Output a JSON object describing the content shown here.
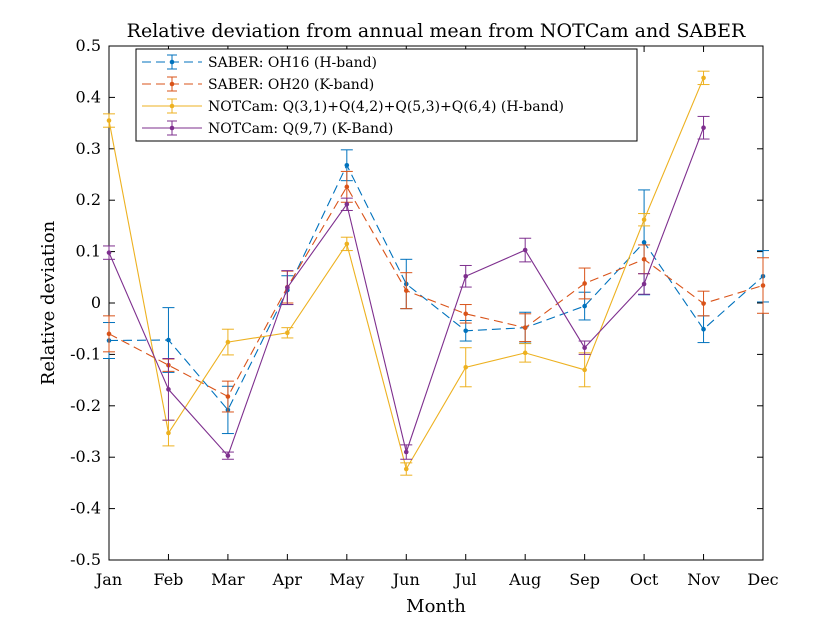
{
  "chart_data": {
    "type": "line",
    "title": "Relative deviation from annual mean from NOTCam and SABER",
    "xlabel": "Month",
    "ylabel": "Relative deviation",
    "categories": [
      "Jan",
      "Feb",
      "Mar",
      "Apr",
      "May",
      "Jun",
      "Jul",
      "Aug",
      "Sep",
      "Oct",
      "Nov",
      "Dec"
    ],
    "ylim": [
      -0.5,
      0.5
    ],
    "yticks": [
      -0.5,
      -0.4,
      -0.3,
      -0.2,
      -0.1,
      0,
      0.1,
      0.2,
      0.3,
      0.4,
      0.5
    ],
    "ytick_labels": [
      "-0.5",
      "-0.4",
      "-0.3",
      "-0.2",
      "-0.1",
      "0",
      "0.1",
      "0.2",
      "0.3",
      "0.4",
      "0.5"
    ],
    "grid": false,
    "legend_position": "top-left",
    "series": [
      {
        "name": "SABER: OH16 (H-band)",
        "color": "#0072BD",
        "dash": "dashed",
        "values": [
          -0.073,
          -0.072,
          -0.208,
          0.025,
          0.268,
          0.037,
          -0.054,
          -0.048,
          -0.006,
          0.118,
          -0.051,
          0.052
        ],
        "errors": [
          0.035,
          0.063,
          0.046,
          0.028,
          0.03,
          0.048,
          0.02,
          0.03,
          0.027,
          0.102,
          0.026,
          0.05
        ]
      },
      {
        "name": "SABER: OH20 (K-band)",
        "color": "#D95319",
        "dash": "dashed",
        "values": [
          -0.06,
          -0.121,
          -0.182,
          0.031,
          0.226,
          0.024,
          -0.021,
          -0.048,
          0.038,
          0.085,
          -0.001,
          0.034
        ],
        "errors": [
          0.035,
          0.012,
          0.03,
          0.031,
          0.03,
          0.035,
          0.018,
          0.027,
          0.03,
          0.028,
          0.024,
          0.054
        ]
      },
      {
        "name": "NOTCam: Q(3,1)+Q(4,2)+Q(5,3)+Q(6,4) (H-band)",
        "color": "#EDB120",
        "dash": "solid",
        "values": [
          0.355,
          -0.253,
          -0.076,
          -0.058,
          0.115,
          -0.323,
          -0.125,
          -0.097,
          -0.13,
          0.162,
          0.438,
          null
        ],
        "errors": [
          0.013,
          0.025,
          0.025,
          0.01,
          0.013,
          0.012,
          0.038,
          0.018,
          0.033,
          0.012,
          0.013,
          null
        ]
      },
      {
        "name": "NOTCam: Q(9,7) (K-Band)",
        "color": "#7E2F8E",
        "dash": "solid",
        "values": [
          0.098,
          -0.168,
          -0.297,
          0.03,
          0.192,
          -0.29,
          0.052,
          0.103,
          -0.087,
          0.037,
          0.341,
          null
        ],
        "errors": [
          0.013,
          0.06,
          0.007,
          0.033,
          0.012,
          0.014,
          0.021,
          0.023,
          0.013,
          0.02,
          0.022,
          null
        ]
      }
    ]
  }
}
